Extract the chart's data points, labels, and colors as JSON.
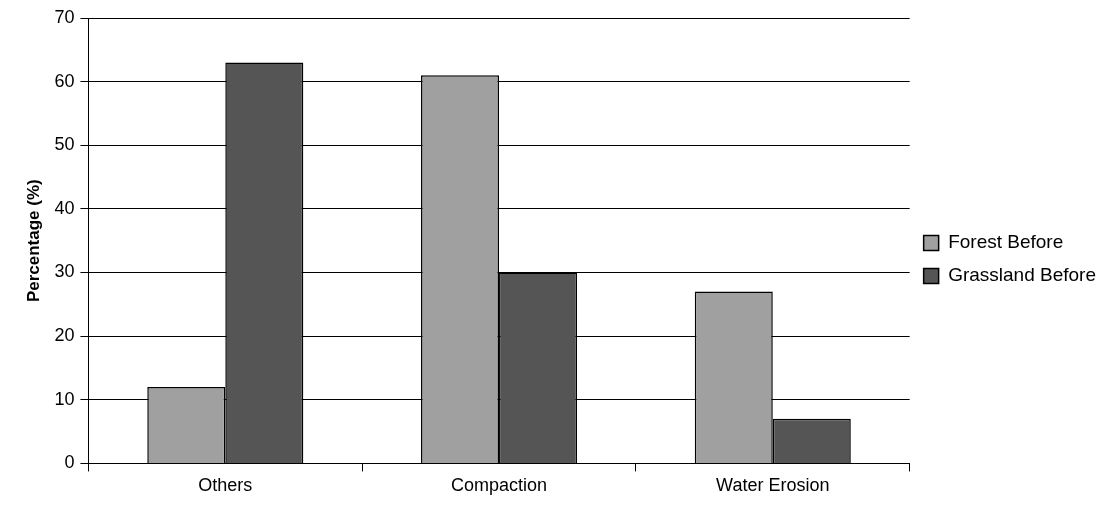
{
  "chart_data": {
    "type": "bar",
    "ylabel": "Percentage (%)",
    "categories": [
      "Others",
      "Compaction",
      "Water Erosion"
    ],
    "series": [
      {
        "name": "Forest Before",
        "color": "#a0a0a0",
        "values": [
          12,
          61,
          27
        ]
      },
      {
        "name": "Grassland Before",
        "color": "#555555",
        "values": [
          63,
          30,
          7
        ]
      }
    ],
    "ylim": [
      0,
      70
    ],
    "yticks": [
      0,
      10,
      20,
      30,
      40,
      50,
      60,
      70
    ],
    "grid": "y",
    "legend": "right"
  }
}
